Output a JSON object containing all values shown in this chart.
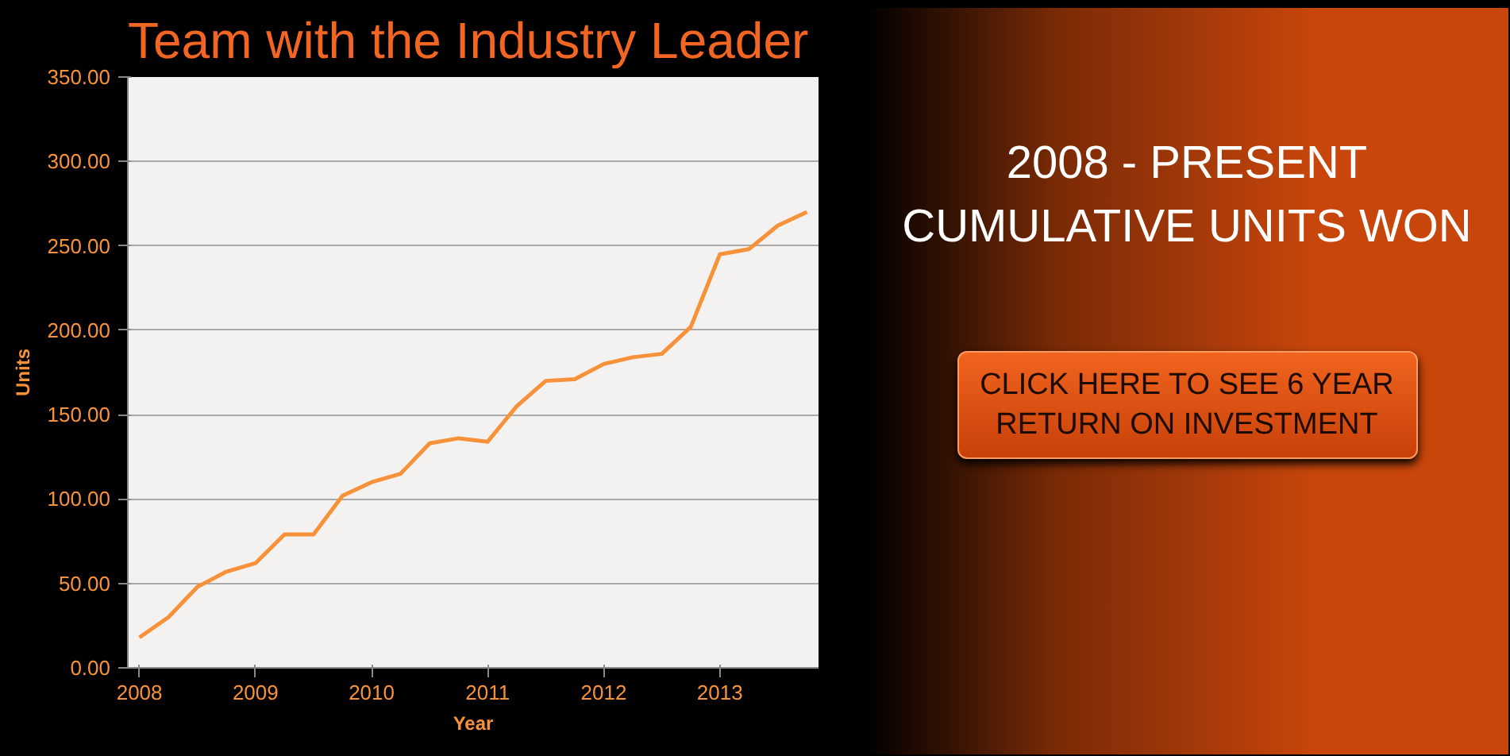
{
  "chart_data": {
    "type": "line",
    "title": "Team with the Industry Leader",
    "xlabel": "Year",
    "ylabel": "Units",
    "annotations": [
      "2008 - PRESENT",
      "CUMULATIVE UNITS WON",
      "CLICK HERE TO SEE 6 YEAR RETURN ON INVESTMENT"
    ],
    "x": [
      2008,
      2008.25,
      2008.5,
      2008.75,
      2009,
      2009.25,
      2009.5,
      2009.75,
      2010,
      2010.25,
      2010.5,
      2010.75,
      2011,
      2011.25,
      2011.5,
      2011.75,
      2012,
      2012.25,
      2012.5,
      2012.75,
      2013,
      2013.25,
      2013.5,
      2013.75
    ],
    "series": [
      {
        "color": "#f7923a",
        "values": [
          18,
          30,
          48,
          57,
          62,
          79,
          79,
          102,
          110,
          115,
          133,
          136,
          134,
          155,
          170,
          171,
          180,
          184,
          186,
          202,
          245,
          248,
          262,
          270
        ]
      }
    ],
    "xlim": [
      2007.9,
      2013.85
    ],
    "xticks": [
      2008,
      2009,
      2010,
      2011,
      2012,
      2013
    ],
    "ylim": [
      0,
      350
    ],
    "yticks": [
      {
        "value": 0,
        "label": "0.00"
      },
      {
        "value": 50,
        "label": "50.00"
      },
      {
        "value": 100,
        "label": "100.00"
      },
      {
        "value": 150,
        "label": "150.00"
      },
      {
        "value": 200,
        "label": "200.00"
      },
      {
        "value": 250,
        "label": "250.00"
      },
      {
        "value": 300,
        "label": "300.00"
      },
      {
        "value": 350,
        "label": "350.00"
      }
    ],
    "grid": "y",
    "marker": "none",
    "line_style": "solid"
  }
}
